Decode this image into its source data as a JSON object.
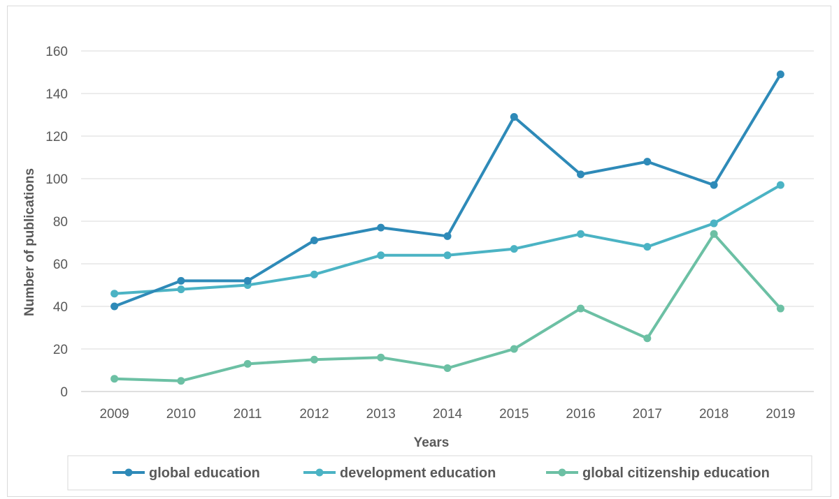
{
  "chart_data": {
    "type": "line",
    "title": "",
    "xlabel": "Years",
    "ylabel": "Number of publications",
    "ylim": [
      0,
      160
    ],
    "yticks": [
      0,
      20,
      40,
      60,
      80,
      100,
      120,
      140,
      160
    ],
    "categories": [
      "2009",
      "2010",
      "2011",
      "2012",
      "2013",
      "2014",
      "2015",
      "2016",
      "2017",
      "2018",
      "2019"
    ],
    "grid": "horizontal",
    "legend_position": "bottom",
    "series": [
      {
        "name": "global education",
        "color": "#2e8ab8",
        "values": [
          40,
          52,
          52,
          71,
          77,
          73,
          129,
          102,
          108,
          97,
          149
        ]
      },
      {
        "name": "development education",
        "color": "#4bb3c4",
        "values": [
          46,
          48,
          50,
          55,
          64,
          64,
          67,
          74,
          68,
          79,
          97
        ]
      },
      {
        "name": "global citizenship education",
        "color": "#6cc0a4",
        "values": [
          6,
          5,
          13,
          15,
          16,
          11,
          20,
          39,
          25,
          74,
          39
        ]
      }
    ]
  }
}
